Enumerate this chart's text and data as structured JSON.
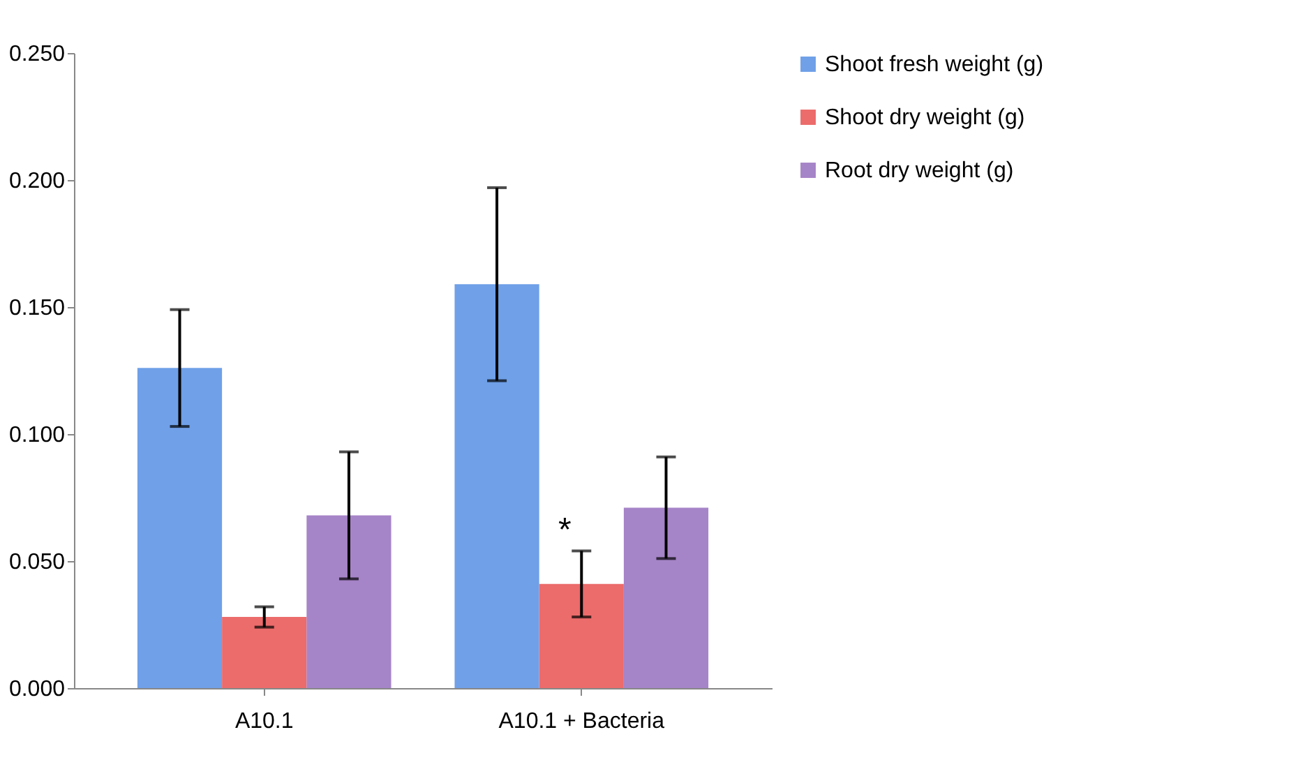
{
  "chart_data": {
    "type": "bar",
    "categories": [
      "A10.1",
      "A10.1 + Bacteria"
    ],
    "series": [
      {
        "name": "Shoot fresh weight (g)",
        "color": "#6fa0e8",
        "values": [
          0.126,
          0.159
        ],
        "errors": [
          0.023,
          0.038
        ]
      },
      {
        "name": "Shoot dry weight (g)",
        "color": "#ec6b6b",
        "values": [
          0.028,
          0.041
        ],
        "errors": [
          0.004,
          0.013
        ]
      },
      {
        "name": "Root dry weight (g)",
        "color": "#a684c8",
        "values": [
          0.068,
          0.071
        ],
        "errors": [
          0.025,
          0.02
        ]
      }
    ],
    "ylim": [
      0,
      0.25
    ],
    "yticks": [
      {
        "value": 0,
        "label": "0.000"
      },
      {
        "value": 0.05,
        "label": "0.050"
      },
      {
        "value": 0.1,
        "label": "0.100"
      },
      {
        "value": 0.15,
        "label": "0.150"
      },
      {
        "value": 0.2,
        "label": "0.200"
      },
      {
        "value": 0.25,
        "label": "0.250"
      }
    ],
    "grid": false,
    "legend": "top right",
    "annotations": [
      {
        "text": "*",
        "x": "A10.1 + Bacteria",
        "y": 0.054
      }
    ]
  }
}
